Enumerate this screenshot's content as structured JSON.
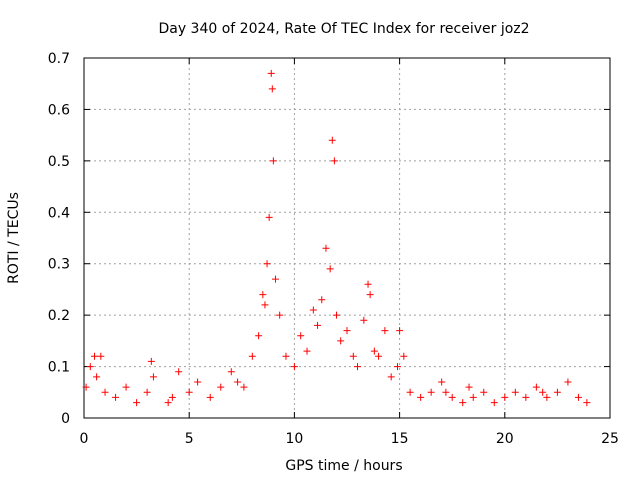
{
  "chart_data": {
    "type": "scatter",
    "title": "Day 340 of 2024, Rate Of TEC Index for receiver joz2",
    "xlabel": "GPS time / hours",
    "ylabel": "ROTI / TECUs",
    "xlim": [
      0,
      25
    ],
    "ylim": [
      0,
      0.7
    ],
    "x_ticks": [
      "0",
      "5",
      "10",
      "15",
      "20",
      "25"
    ],
    "y_ticks": [
      "0",
      "0.1",
      "0.2",
      "0.3",
      "0.4",
      "0.5",
      "0.6",
      "0.7"
    ],
    "grid": true,
    "marker": "+",
    "color": "#ff0000",
    "series": [
      {
        "x": [
          0.1,
          0.3,
          0.5,
          0.6,
          0.8,
          1.0,
          1.5,
          2.0,
          2.5,
          3.0,
          3.2,
          3.3,
          4.0,
          4.2,
          4.5,
          5.0,
          5.4,
          6.0,
          6.5,
          7.0,
          7.3,
          7.6,
          8.0,
          8.3,
          8.5,
          8.6,
          8.7,
          8.8,
          8.9,
          8.95,
          9.0,
          9.1,
          9.3,
          9.6,
          10.0,
          10.3,
          10.6,
          10.9,
          11.1,
          11.3,
          11.5,
          11.7,
          11.8,
          11.9,
          12.0,
          12.2,
          12.5,
          12.8,
          13.0,
          13.3,
          13.5,
          13.6,
          13.8,
          14.0,
          14.3,
          14.6,
          14.9,
          15.0,
          15.2,
          15.5,
          16.0,
          16.5,
          17.0,
          17.2,
          17.5,
          18.0,
          18.3,
          18.5,
          19.0,
          19.5,
          20.0,
          20.5,
          21.0,
          21.5,
          21.8,
          22.0,
          22.5,
          23.0,
          23.5,
          23.9
        ],
        "y": [
          0.06,
          0.1,
          0.12,
          0.08,
          0.12,
          0.05,
          0.04,
          0.06,
          0.03,
          0.05,
          0.11,
          0.08,
          0.03,
          0.04,
          0.09,
          0.05,
          0.07,
          0.04,
          0.06,
          0.09,
          0.07,
          0.06,
          0.12,
          0.16,
          0.24,
          0.22,
          0.3,
          0.39,
          0.67,
          0.64,
          0.5,
          0.27,
          0.2,
          0.12,
          0.1,
          0.16,
          0.13,
          0.21,
          0.18,
          0.23,
          0.33,
          0.29,
          0.54,
          0.5,
          0.2,
          0.15,
          0.17,
          0.12,
          0.1,
          0.19,
          0.26,
          0.24,
          0.13,
          0.12,
          0.17,
          0.08,
          0.1,
          0.17,
          0.12,
          0.05,
          0.04,
          0.05,
          0.07,
          0.05,
          0.04,
          0.03,
          0.06,
          0.04,
          0.05,
          0.03,
          0.04,
          0.05,
          0.04,
          0.06,
          0.05,
          0.04,
          0.05,
          0.07,
          0.04,
          0.03
        ]
      }
    ]
  }
}
